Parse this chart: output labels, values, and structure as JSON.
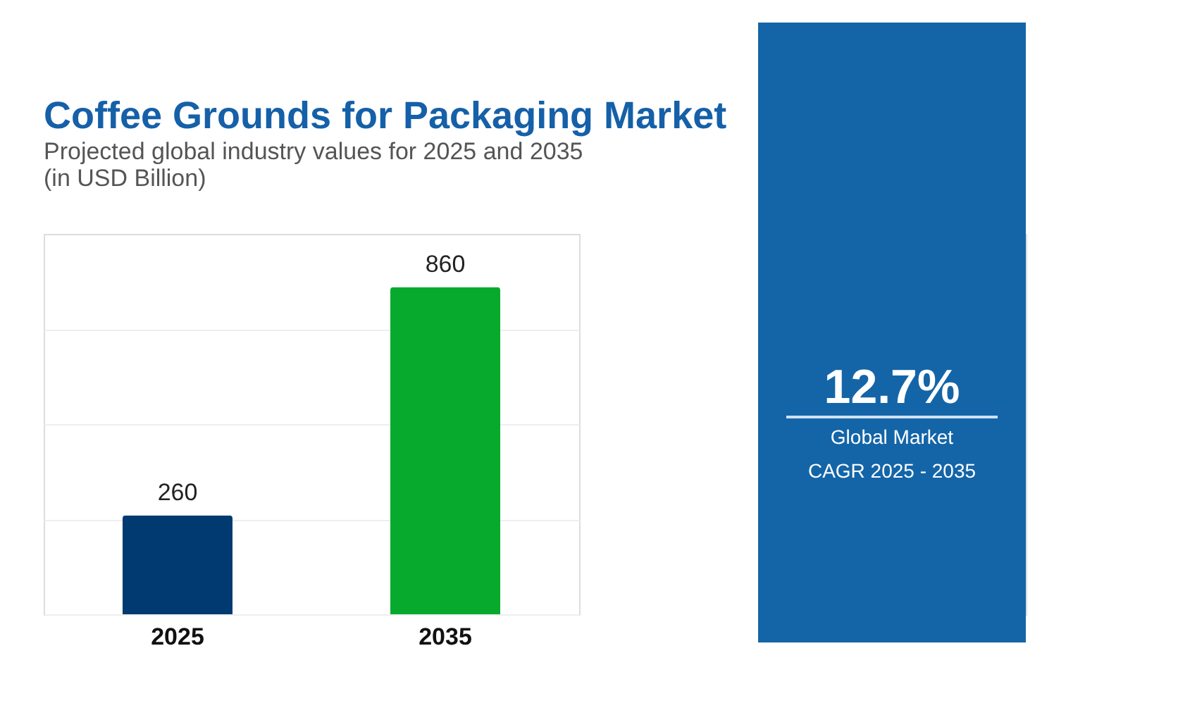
{
  "chart_data": {
    "type": "bar",
    "title": "Coffee Grounds for Packaging Market",
    "subtitle": [
      "Projected global industry values for 2025 and 2035",
      "(in USD Billion)"
    ],
    "categories": [
      "2025",
      "2035"
    ],
    "values": [
      260,
      860
    ],
    "colors": [
      "#003a70",
      "#08aa2d"
    ],
    "ylim": [
      0,
      1000
    ],
    "yticks": [
      {
        "value": 0,
        "label": null
      },
      {
        "value": 250,
        "label": null
      },
      {
        "value": 500,
        "label": null
      },
      {
        "value": 750,
        "label": null
      }
    ],
    "grid": "y",
    "tick_labels": "x",
    "data_labels": true,
    "annotations": [
      "12.7%",
      "Global Market",
      "CAGR 2025 - 2035"
    ]
  }
}
